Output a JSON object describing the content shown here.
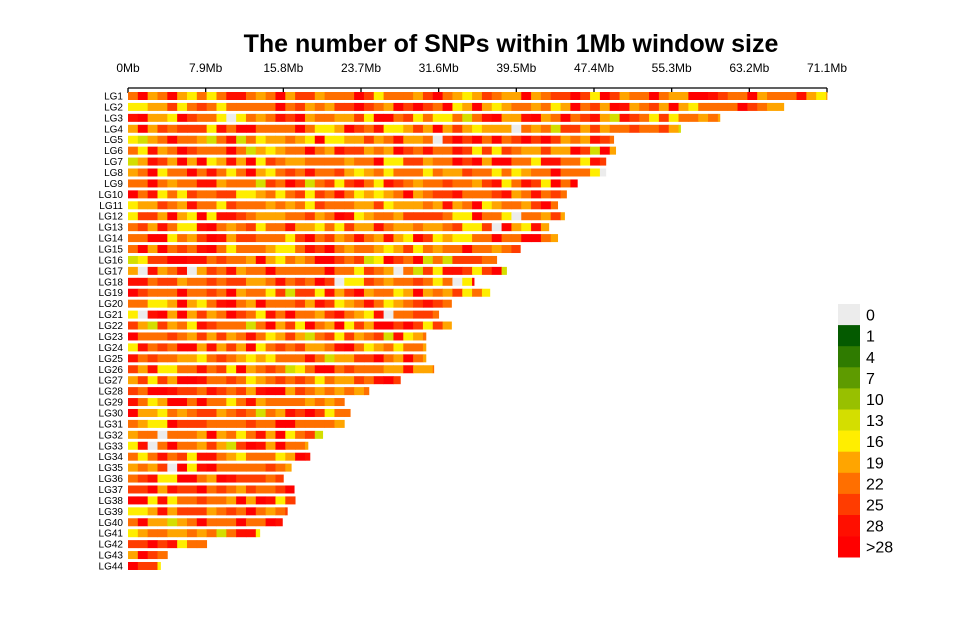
{
  "chart_data": {
    "type": "heatmap",
    "title": "The number of SNPs within 1Mb window size",
    "window_size_mb": 1,
    "x_tick_labels": [
      "0Mb",
      "7.9Mb",
      "15.8Mb",
      "23.7Mb",
      "31.6Mb",
      "39.5Mb",
      "47.4Mb",
      "55.3Mb",
      "63.2Mb",
      "71.1Mb"
    ],
    "x_ticks_mb": [
      0,
      7.9,
      15.8,
      23.7,
      31.6,
      39.5,
      47.4,
      55.3,
      63.2,
      71.1
    ],
    "xlim_mb": [
      0,
      71.1
    ],
    "chromosomes": [
      {
        "name": "LG1",
        "length_mb": 71.1
      },
      {
        "name": "LG2",
        "length_mb": 66.7
      },
      {
        "name": "LG3",
        "length_mb": 60.2
      },
      {
        "name": "LG4",
        "length_mb": 56.2
      },
      {
        "name": "LG5",
        "length_mb": 49.4
      },
      {
        "name": "LG6",
        "length_mb": 49.6
      },
      {
        "name": "LG7",
        "length_mb": 48.6
      },
      {
        "name": "LG8",
        "length_mb": 48.6
      },
      {
        "name": "LG9",
        "length_mb": 45.7
      },
      {
        "name": "LG10",
        "length_mb": 44.6
      },
      {
        "name": "LG11",
        "length_mb": 43.7
      },
      {
        "name": "LG12",
        "length_mb": 44.4
      },
      {
        "name": "LG13",
        "length_mb": 42.8
      },
      {
        "name": "LG14",
        "length_mb": 43.7
      },
      {
        "name": "LG15",
        "length_mb": 39.9
      },
      {
        "name": "LG16",
        "length_mb": 37.5
      },
      {
        "name": "LG17",
        "length_mb": 38.5
      },
      {
        "name": "LG18",
        "length_mb": 35.2
      },
      {
        "name": "LG19",
        "length_mb": 36.8
      },
      {
        "name": "LG20",
        "length_mb": 32.9
      },
      {
        "name": "LG21",
        "length_mb": 31.6
      },
      {
        "name": "LG22",
        "length_mb": 32.9
      },
      {
        "name": "LG23",
        "length_mb": 30.3
      },
      {
        "name": "LG24",
        "length_mb": 30.3
      },
      {
        "name": "LG25",
        "length_mb": 30.3
      },
      {
        "name": "LG26",
        "length_mb": 31.1
      },
      {
        "name": "LG27",
        "length_mb": 27.7
      },
      {
        "name": "LG28",
        "length_mb": 24.5
      },
      {
        "name": "LG29",
        "length_mb": 22.0
      },
      {
        "name": "LG30",
        "length_mb": 22.6
      },
      {
        "name": "LG31",
        "length_mb": 22.0
      },
      {
        "name": "LG32",
        "length_mb": 19.8
      },
      {
        "name": "LG33",
        "length_mb": 18.3
      },
      {
        "name": "LG34",
        "length_mb": 18.5
      },
      {
        "name": "LG35",
        "length_mb": 16.6
      },
      {
        "name": "LG36",
        "length_mb": 15.8
      },
      {
        "name": "LG37",
        "length_mb": 16.9
      },
      {
        "name": "LG38",
        "length_mb": 17.0
      },
      {
        "name": "LG39",
        "length_mb": 16.2
      },
      {
        "name": "LG40",
        "length_mb": 15.7
      },
      {
        "name": "LG41",
        "length_mb": 13.4
      },
      {
        "name": "LG42",
        "length_mb": 8.0
      },
      {
        "name": "LG43",
        "length_mb": 4.0
      },
      {
        "name": "LG44",
        "length_mb": 3.3
      }
    ],
    "legend": [
      {
        "label": "0",
        "color": "#ececec"
      },
      {
        "label": "1",
        "color": "#045a00"
      },
      {
        "label": "4",
        "color": "#2f7b00"
      },
      {
        "label": "7",
        "color": "#5e9b00"
      },
      {
        "label": "10",
        "color": "#98c000"
      },
      {
        "label": "13",
        "color": "#d4de00"
      },
      {
        "label": "16",
        "color": "#ffee00"
      },
      {
        "label": "19",
        "color": "#ffa500"
      },
      {
        "label": "22",
        "color": "#ff6f00"
      },
      {
        "label": "25",
        "color": "#ff3c00"
      },
      {
        "label": "28",
        "color": "#ff0f00"
      },
      {
        "label": ">28",
        "color": "#ff0000"
      }
    ],
    "legend_placement": "right"
  }
}
